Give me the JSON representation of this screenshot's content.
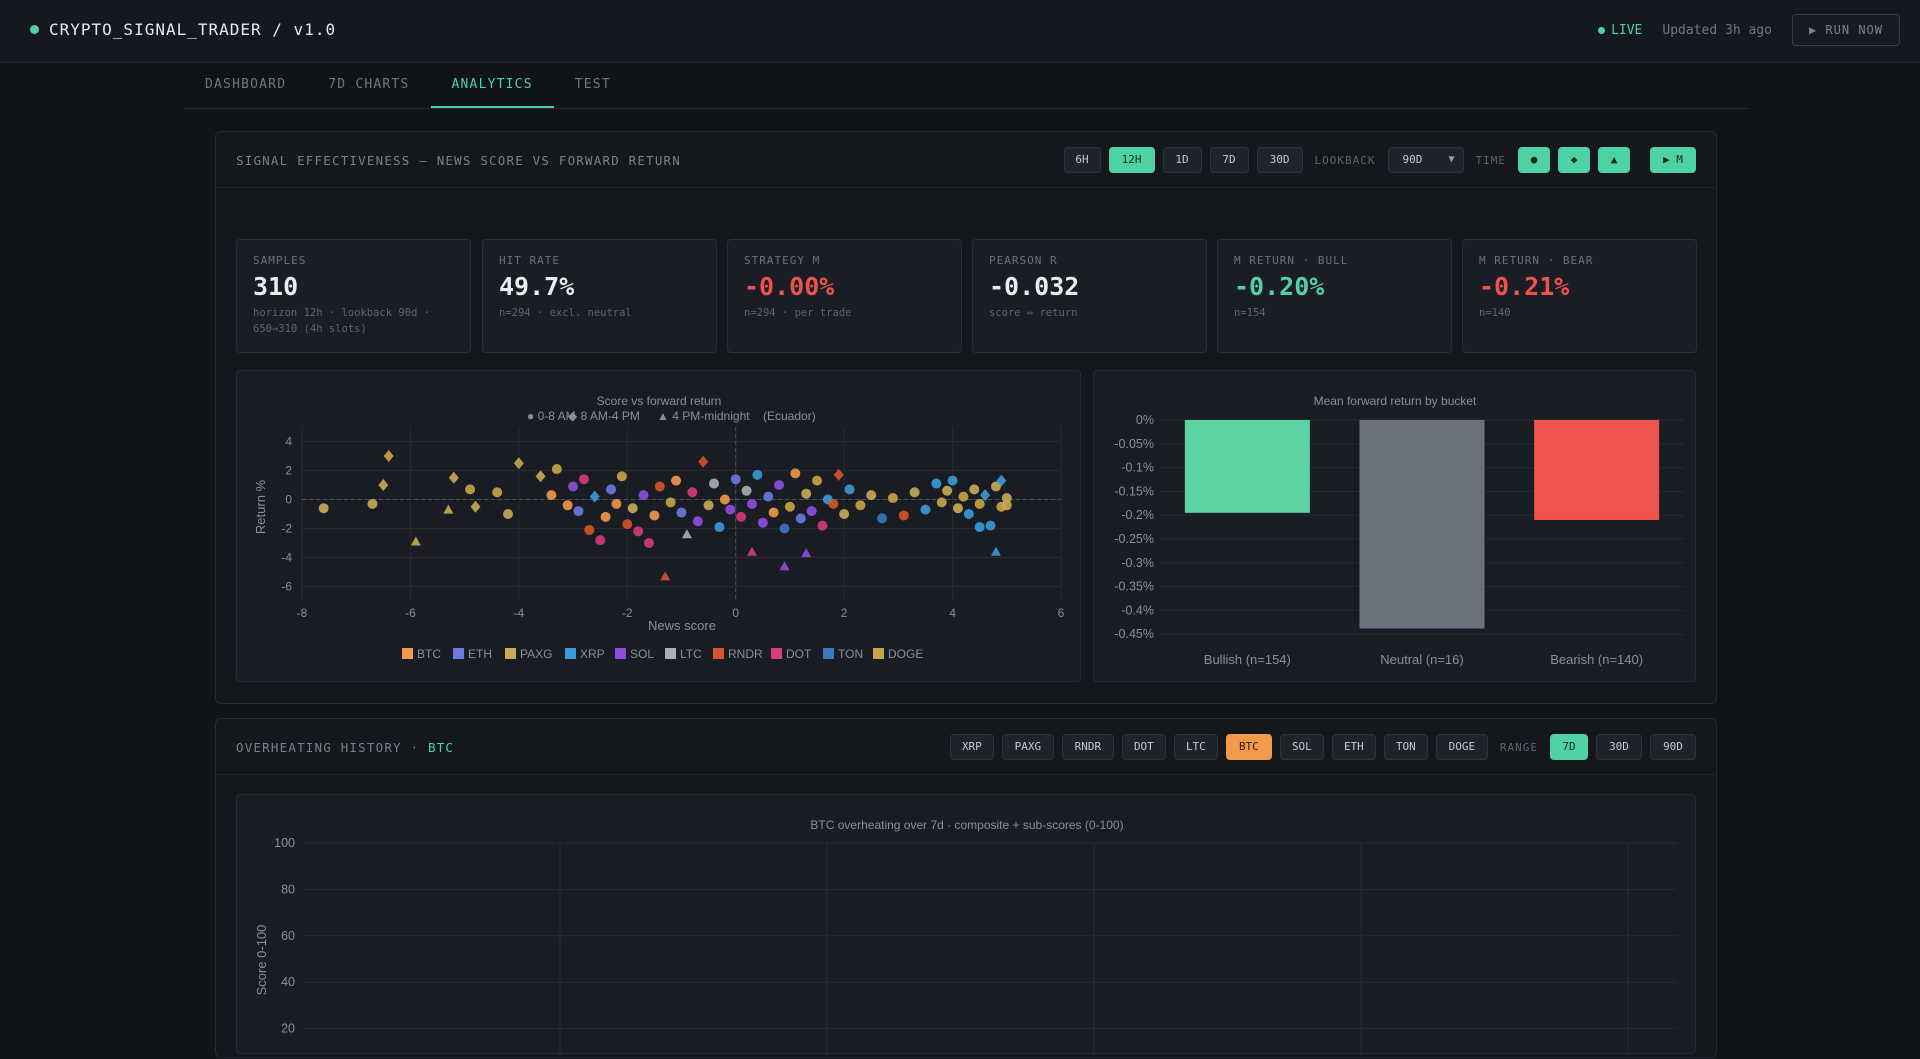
{
  "app": {
    "title": "CRYPTO_SIGNAL_TRADER / v1.0",
    "live": "LIVE",
    "updated": "Updated 3h ago",
    "run": "▶ RUN NOW"
  },
  "tabs": [
    "DASHBOARD",
    "7D CHARTS",
    "ANALYTICS",
    "TEST"
  ],
  "signal": {
    "title": "SIGNAL EFFECTIVENESS — NEWS SCORE VS FORWARD RETURN",
    "horizons": [
      "6H",
      "12H",
      "1D",
      "7D",
      "30D"
    ],
    "horizon_selected": "12H",
    "lookback_label": "LOOKBACK",
    "lookback_value": "90D",
    "time_label": "TIME",
    "time_buttons": [
      "●",
      "◆",
      "▲"
    ],
    "m_button": "▶ M"
  },
  "stats": [
    {
      "label": "SAMPLES",
      "value": "310",
      "sub": "horizon 12h · lookback 90d ·",
      "sub2": "650→310 (4h slots)",
      "tone": "neutral"
    },
    {
      "label": "HIT RATE",
      "value": "49.7%",
      "sub": "n=294 · excl. neutral",
      "sub2": "",
      "tone": "neutral"
    },
    {
      "label": "STRATEGY M",
      "value": "-0.00%",
      "sub": "n=294 · per trade",
      "sub2": "",
      "tone": "red"
    },
    {
      "label": "PEARSON R",
      "value": "-0.032",
      "sub": "score ↔ return",
      "sub2": "",
      "tone": "neutral"
    },
    {
      "label": "M RETURN · BULL",
      "value": "-0.20%",
      "sub": "n=154",
      "sub2": "",
      "tone": "green"
    },
    {
      "label": "M RETURN · BEAR",
      "value": "-0.21%",
      "sub": "n=140",
      "sub2": "",
      "tone": "red"
    }
  ],
  "chart_data": [
    {
      "type": "scatter",
      "title": "Score vs forward return",
      "subtitle_items": [
        "● 0-8 AM",
        "◆ 8 AM-4 PM",
        "▲ 4 PM-midnight",
        "(Ecuador)"
      ],
      "xlabel": "News score",
      "ylabel": "Return %",
      "xlim": [
        -8,
        6
      ],
      "ylim": [
        -7,
        5
      ],
      "xticks": [
        -8,
        -6,
        -4,
        -2,
        0,
        2,
        4,
        6
      ],
      "yticks": [
        4,
        2,
        0,
        -2,
        -4,
        -6
      ],
      "legend": [
        {
          "name": "BTC",
          "color": "#f2994a"
        },
        {
          "name": "ETH",
          "color": "#6a7ae0"
        },
        {
          "name": "PAXG",
          "color": "#c9ac58"
        },
        {
          "name": "XRP",
          "color": "#3a9bd9"
        },
        {
          "name": "SOL",
          "color": "#8e4fe0"
        },
        {
          "name": "LTC",
          "color": "#aab0b8"
        },
        {
          "name": "RNDR",
          "color": "#d4572b"
        },
        {
          "name": "DOT",
          "color": "#d63b7a"
        },
        {
          "name": "TON",
          "color": "#3a78c0"
        },
        {
          "name": "DOGE",
          "color": "#c7a643"
        }
      ],
      "points": [
        {
          "x": -7.6,
          "y": -0.6,
          "s": "PAXG",
          "m": "c"
        },
        {
          "x": -6.7,
          "y": -0.3,
          "s": "PAXG",
          "m": "c"
        },
        {
          "x": -6.4,
          "y": 3.0,
          "s": "DOGE",
          "m": "d"
        },
        {
          "x": -6.5,
          "y": 1.0,
          "s": "PAXG",
          "m": "d"
        },
        {
          "x": -5.9,
          "y": -2.9,
          "s": "PAXG",
          "m": "t"
        },
        {
          "x": -5.3,
          "y": -0.7,
          "s": "PAXG",
          "m": "t"
        },
        {
          "x": -5.2,
          "y": 1.5,
          "s": "PAXG",
          "m": "d"
        },
        {
          "x": -4.9,
          "y": 0.7,
          "s": "DOGE",
          "m": "c"
        },
        {
          "x": -4.8,
          "y": -0.5,
          "s": "PAXG",
          "m": "d"
        },
        {
          "x": -4.4,
          "y": 0.5,
          "s": "DOGE",
          "m": "c"
        },
        {
          "x": -4.2,
          "y": -1.0,
          "s": "PAXG",
          "m": "c"
        },
        {
          "x": -4.0,
          "y": 2.5,
          "s": "DOGE",
          "m": "d"
        },
        {
          "x": -3.6,
          "y": 1.6,
          "s": "PAXG",
          "m": "d"
        },
        {
          "x": -3.4,
          "y": 0.3,
          "s": "BTC",
          "m": "c"
        },
        {
          "x": -3.3,
          "y": 2.1,
          "s": "DOGE",
          "m": "c"
        },
        {
          "x": -3.1,
          "y": -0.4,
          "s": "BTC",
          "m": "c"
        },
        {
          "x": -3.0,
          "y": 0.9,
          "s": "SOL",
          "m": "c"
        },
        {
          "x": -2.9,
          "y": -0.8,
          "s": "ETH",
          "m": "c"
        },
        {
          "x": -2.8,
          "y": 1.4,
          "s": "DOT",
          "m": "c"
        },
        {
          "x": -2.7,
          "y": -2.1,
          "s": "RNDR",
          "m": "c"
        },
        {
          "x": -2.6,
          "y": 0.2,
          "s": "XRP",
          "m": "d"
        },
        {
          "x": -2.5,
          "y": -2.8,
          "s": "DOT",
          "m": "c"
        },
        {
          "x": -2.4,
          "y": -1.2,
          "s": "BTC",
          "m": "c"
        },
        {
          "x": -2.3,
          "y": 0.7,
          "s": "ETH",
          "m": "c"
        },
        {
          "x": -2.2,
          "y": -0.3,
          "s": "BTC",
          "m": "c"
        },
        {
          "x": -2.1,
          "y": 1.6,
          "s": "DOGE",
          "m": "c"
        },
        {
          "x": -2.0,
          "y": -1.7,
          "s": "RNDR",
          "m": "c"
        },
        {
          "x": -1.9,
          "y": -0.6,
          "s": "PAXG",
          "m": "c"
        },
        {
          "x": -1.8,
          "y": -2.2,
          "s": "DOT",
          "m": "c"
        },
        {
          "x": -1.7,
          "y": 0.3,
          "s": "SOL",
          "m": "c"
        },
        {
          "x": -1.6,
          "y": -3.0,
          "s": "DOT",
          "m": "c"
        },
        {
          "x": -1.5,
          "y": -1.1,
          "s": "BTC",
          "m": "c"
        },
        {
          "x": -1.4,
          "y": 0.9,
          "s": "RNDR",
          "m": "c"
        },
        {
          "x": -1.3,
          "y": -5.3,
          "s": "RNDR",
          "m": "t"
        },
        {
          "x": -1.2,
          "y": -0.2,
          "s": "DOGE",
          "m": "c"
        },
        {
          "x": -1.1,
          "y": 1.3,
          "s": "BTC",
          "m": "c"
        },
        {
          "x": -1.0,
          "y": -0.9,
          "s": "ETH",
          "m": "c"
        },
        {
          "x": -0.9,
          "y": -2.4,
          "s": "LTC",
          "m": "t"
        },
        {
          "x": -0.8,
          "y": 0.5,
          "s": "DOT",
          "m": "c"
        },
        {
          "x": -0.7,
          "y": -1.5,
          "s": "SOL",
          "m": "c"
        },
        {
          "x": -0.6,
          "y": 2.6,
          "s": "RNDR",
          "m": "d"
        },
        {
          "x": -0.5,
          "y": -0.4,
          "s": "PAXG",
          "m": "c"
        },
        {
          "x": -0.4,
          "y": 1.1,
          "s": "LTC",
          "m": "c"
        },
        {
          "x": -0.3,
          "y": -1.9,
          "s": "XRP",
          "m": "c"
        },
        {
          "x": -0.2,
          "y": 0.0,
          "s": "BTC",
          "m": "c"
        },
        {
          "x": -0.1,
          "y": -0.7,
          "s": "SOL",
          "m": "c"
        },
        {
          "x": 0.0,
          "y": 1.4,
          "s": "ETH",
          "m": "c"
        },
        {
          "x": 0.1,
          "y": -1.2,
          "s": "DOT",
          "m": "c"
        },
        {
          "x": 0.2,
          "y": 0.6,
          "s": "LTC",
          "m": "c"
        },
        {
          "x": 0.3,
          "y": -0.3,
          "s": "SOL",
          "m": "c"
        },
        {
          "x": 0.3,
          "y": -3.6,
          "s": "DOT",
          "m": "t"
        },
        {
          "x": 0.4,
          "y": 1.7,
          "s": "XRP",
          "m": "c"
        },
        {
          "x": 0.5,
          "y": -1.6,
          "s": "SOL",
          "m": "c"
        },
        {
          "x": 0.6,
          "y": 0.2,
          "s": "ETH",
          "m": "c"
        },
        {
          "x": 0.7,
          "y": -0.9,
          "s": "BTC",
          "m": "c"
        },
        {
          "x": 0.8,
          "y": 1.0,
          "s": "SOL",
          "m": "c"
        },
        {
          "x": 0.9,
          "y": -2.0,
          "s": "TON",
          "m": "c"
        },
        {
          "x": 1.0,
          "y": -0.5,
          "s": "DOGE",
          "m": "c"
        },
        {
          "x": 0.9,
          "y": -4.6,
          "s": "SOL",
          "m": "t"
        },
        {
          "x": 1.1,
          "y": 1.8,
          "s": "BTC",
          "m": "c"
        },
        {
          "x": 1.2,
          "y": -1.3,
          "s": "ETH",
          "m": "c"
        },
        {
          "x": 1.3,
          "y": 0.4,
          "s": "PAXG",
          "m": "c"
        },
        {
          "x": 1.3,
          "y": -3.7,
          "s": "SOL",
          "m": "t"
        },
        {
          "x": 1.4,
          "y": -0.8,
          "s": "SOL",
          "m": "c"
        },
        {
          "x": 1.5,
          "y": 1.3,
          "s": "DOGE",
          "m": "c"
        },
        {
          "x": 1.6,
          "y": -1.8,
          "s": "DOT",
          "m": "c"
        },
        {
          "x": 1.7,
          "y": 0.0,
          "s": "XRP",
          "m": "c"
        },
        {
          "x": 1.8,
          "y": -0.3,
          "s": "RNDR",
          "m": "c"
        },
        {
          "x": 1.9,
          "y": 1.7,
          "s": "RNDR",
          "m": "d"
        },
        {
          "x": 2.0,
          "y": -1.0,
          "s": "PAXG",
          "m": "c"
        },
        {
          "x": 2.1,
          "y": 0.7,
          "s": "XRP",
          "m": "c"
        },
        {
          "x": 2.3,
          "y": -0.4,
          "s": "DOGE",
          "m": "c"
        },
        {
          "x": 2.5,
          "y": 0.3,
          "s": "PAXG",
          "m": "c"
        },
        {
          "x": 2.7,
          "y": -1.3,
          "s": "TON",
          "m": "c"
        },
        {
          "x": 2.9,
          "y": 0.1,
          "s": "DOGE",
          "m": "c"
        },
        {
          "x": 3.1,
          "y": -1.1,
          "s": "RNDR",
          "m": "c"
        },
        {
          "x": 3.3,
          "y": 0.5,
          "s": "PAXG",
          "m": "c"
        },
        {
          "x": 3.5,
          "y": -0.7,
          "s": "XRP",
          "m": "c"
        },
        {
          "x": 3.7,
          "y": 1.1,
          "s": "XRP",
          "m": "c"
        },
        {
          "x": 3.8,
          "y": -0.2,
          "s": "DOGE",
          "m": "c"
        },
        {
          "x": 3.9,
          "y": 0.6,
          "s": "PAXG",
          "m": "c"
        },
        {
          "x": 4.0,
          "y": 1.3,
          "s": "XRP",
          "m": "c"
        },
        {
          "x": 4.1,
          "y": -0.6,
          "s": "PAXG",
          "m": "c"
        },
        {
          "x": 4.2,
          "y": 0.2,
          "s": "DOGE",
          "m": "c"
        },
        {
          "x": 4.3,
          "y": -1.0,
          "s": "XRP",
          "m": "c"
        },
        {
          "x": 4.4,
          "y": 0.7,
          "s": "PAXG",
          "m": "c"
        },
        {
          "x": 4.5,
          "y": -0.3,
          "s": "DOGE",
          "m": "c"
        },
        {
          "x": 4.6,
          "y": 0.3,
          "s": "XRP",
          "m": "d"
        },
        {
          "x": 4.7,
          "y": -1.8,
          "s": "XRP",
          "m": "c"
        },
        {
          "x": 4.8,
          "y": 0.9,
          "s": "PAXG",
          "m": "c"
        },
        {
          "x": 4.9,
          "y": -0.5,
          "s": "DOGE",
          "m": "c"
        },
        {
          "x": 4.9,
          "y": 1.3,
          "s": "XRP",
          "m": "d"
        },
        {
          "x": 5.0,
          "y": 0.1,
          "s": "PAXG",
          "m": "c"
        },
        {
          "x": 5.0,
          "y": -0.4,
          "s": "PAXG",
          "m": "c"
        },
        {
          "x": 4.8,
          "y": -3.6,
          "s": "XRP",
          "m": "t"
        },
        {
          "x": 4.5,
          "y": -1.9,
          "s": "XRP",
          "m": "c"
        }
      ]
    },
    {
      "type": "bar",
      "title": "Mean forward return by bucket",
      "categories": [
        "Bullish (n=154)",
        "Neutral (n=16)",
        "Bearish (n=140)"
      ],
      "values": [
        -0.195,
        -0.438,
        -0.21
      ],
      "colors": [
        "#5dd3a4",
        "#6b727e",
        "#ef5350"
      ],
      "ylim": [
        -0.46,
        0
      ],
      "yticks": [
        "0%",
        "-0.05%",
        "-0.1%",
        "-0.15%",
        "-0.2%",
        "-0.25%",
        "-0.3%",
        "-0.35%",
        "-0.4%",
        "-0.45%"
      ]
    },
    {
      "type": "line",
      "title": "BTC overheating over 7d · composite + sub-scores (0-100)",
      "ylabel": "Score 0-100",
      "ylim": [
        0,
        100
      ],
      "yticks": [
        100,
        80,
        60,
        40,
        20
      ],
      "series": []
    }
  ],
  "overheat": {
    "title": "OVERHEATING HISTORY ·",
    "asset": "BTC",
    "assets": [
      "XRP",
      "PAXG",
      "RNDR",
      "DOT",
      "LTC",
      "BTC",
      "SOL",
      "ETH",
      "TON",
      "DOGE"
    ],
    "asset_selected": "BTC",
    "range_label": "RANGE",
    "ranges": [
      "7D",
      "30D",
      "90D"
    ],
    "range_selected": "7D"
  },
  "colors": {
    "accent": "#4fd1a6",
    "negative": "#ef5350",
    "highlight": "#f2994a"
  }
}
